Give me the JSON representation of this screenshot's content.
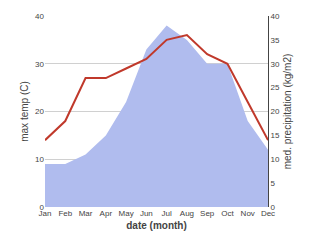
{
  "chart_data": {
    "type": "line",
    "categories": [
      "Jan",
      "Feb",
      "Mar",
      "Apr",
      "May",
      "Jun",
      "Jul",
      "Aug",
      "Sep",
      "Oct",
      "Nov",
      "Dec"
    ],
    "xlabel": "date (month)",
    "ylabel": "max temp (C)",
    "y2label": "med. precipitation (kg/m2)",
    "series": [
      {
        "type": "area",
        "axis": "y2",
        "color": "#b0bcee",
        "values": [
          9.0,
          9.0,
          11.0,
          15.0,
          22.0,
          33.0,
          38.0,
          35.0,
          30.0,
          30.0,
          18.0,
          12.0
        ]
      },
      {
        "type": "line",
        "color": "#c0392b",
        "values": [
          14.0,
          18.0,
          27.0,
          27.0,
          29.0,
          31.0,
          35.0,
          36.0,
          32.0,
          30.0,
          22.0,
          14.0
        ]
      }
    ],
    "ylim": [
      0,
      40
    ],
    "yticks": [
      0,
      10,
      20,
      30,
      40
    ],
    "y2lim": [
      0,
      40
    ],
    "y2ticks": [
      0,
      5,
      10,
      15,
      20,
      25,
      30,
      35,
      40
    ],
    "grid": true
  }
}
